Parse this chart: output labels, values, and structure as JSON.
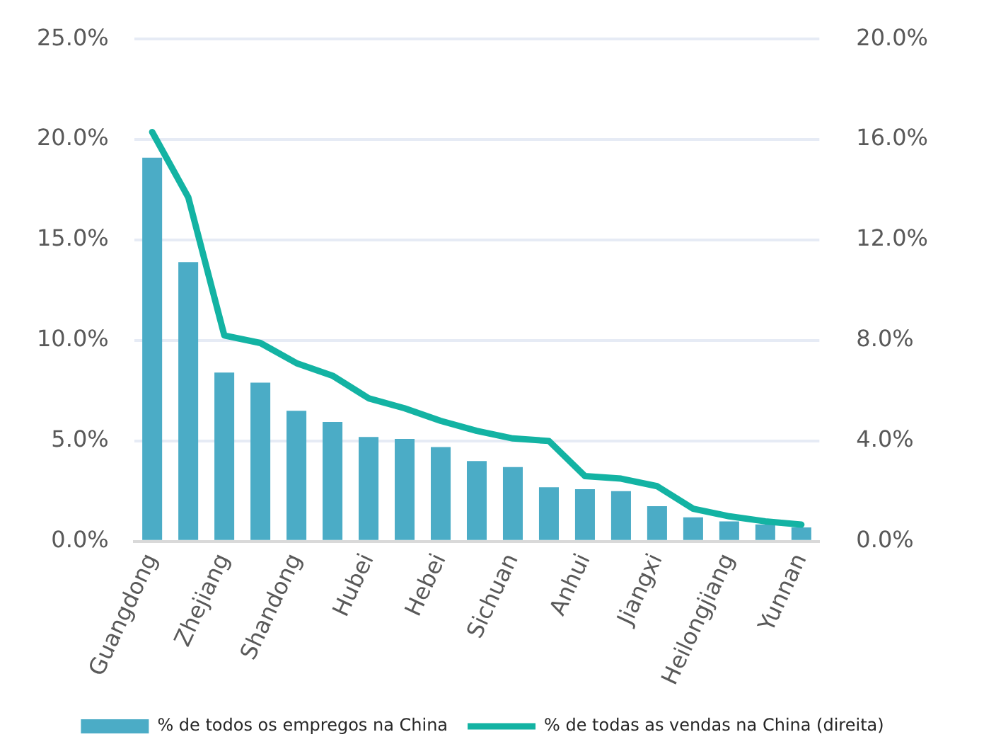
{
  "chart_data": {
    "type": "bar",
    "categories": [
      "Guangdong",
      null,
      "Zhejiang",
      null,
      "Shandong",
      null,
      "Hubei",
      null,
      "Hebei",
      null,
      "Sichuan",
      null,
      "Anhui",
      null,
      "Jiangxi",
      null,
      "Heilongjiang",
      null,
      "Yunnan"
    ],
    "series": [
      {
        "name": "% de todos os empregos na China",
        "color": "#4bacc6",
        "values": [
          19.1,
          13.9,
          8.4,
          7.9,
          6.5,
          5.95,
          5.2,
          5.1,
          4.7,
          4.0,
          3.7,
          2.7,
          2.6,
          2.5,
          1.75,
          1.2,
          1.0,
          0.85,
          0.7
        ]
      },
      {
        "name": "% de todas as vendas na China (direita)",
        "type": "line",
        "axis": "y2",
        "color": "#13b3a3",
        "marker": "none",
        "line_style": "solid",
        "values": [
          16.3,
          13.7,
          8.2,
          7.9,
          7.1,
          6.6,
          5.7,
          5.3,
          4.8,
          4.4,
          4.1,
          4.0,
          2.6,
          2.5,
          2.2,
          1.3,
          1.0,
          0.8,
          0.67
        ]
      }
    ],
    "ylim": [
      0,
      25
    ],
    "yticks": [
      {
        "value": 0,
        "label": "0.0%"
      },
      {
        "value": 5,
        "label": "5.0%"
      },
      {
        "value": 10,
        "label": "10.0%"
      },
      {
        "value": 15,
        "label": "15.0%"
      },
      {
        "value": 20,
        "label": "20.0%"
      },
      {
        "value": 25,
        "label": "25.0%"
      }
    ],
    "y2lim": [
      0,
      20
    ],
    "y2ticks": [
      {
        "value": 0,
        "label": "0.0%"
      },
      {
        "value": 4,
        "label": "4.0%"
      },
      {
        "value": 8,
        "label": "8.0%"
      },
      {
        "value": 12,
        "label": "12.0%"
      },
      {
        "value": 16,
        "label": "16.0%"
      },
      {
        "value": 20,
        "label": "20.0%"
      }
    ],
    "grid": "y",
    "legend": "bottom"
  }
}
